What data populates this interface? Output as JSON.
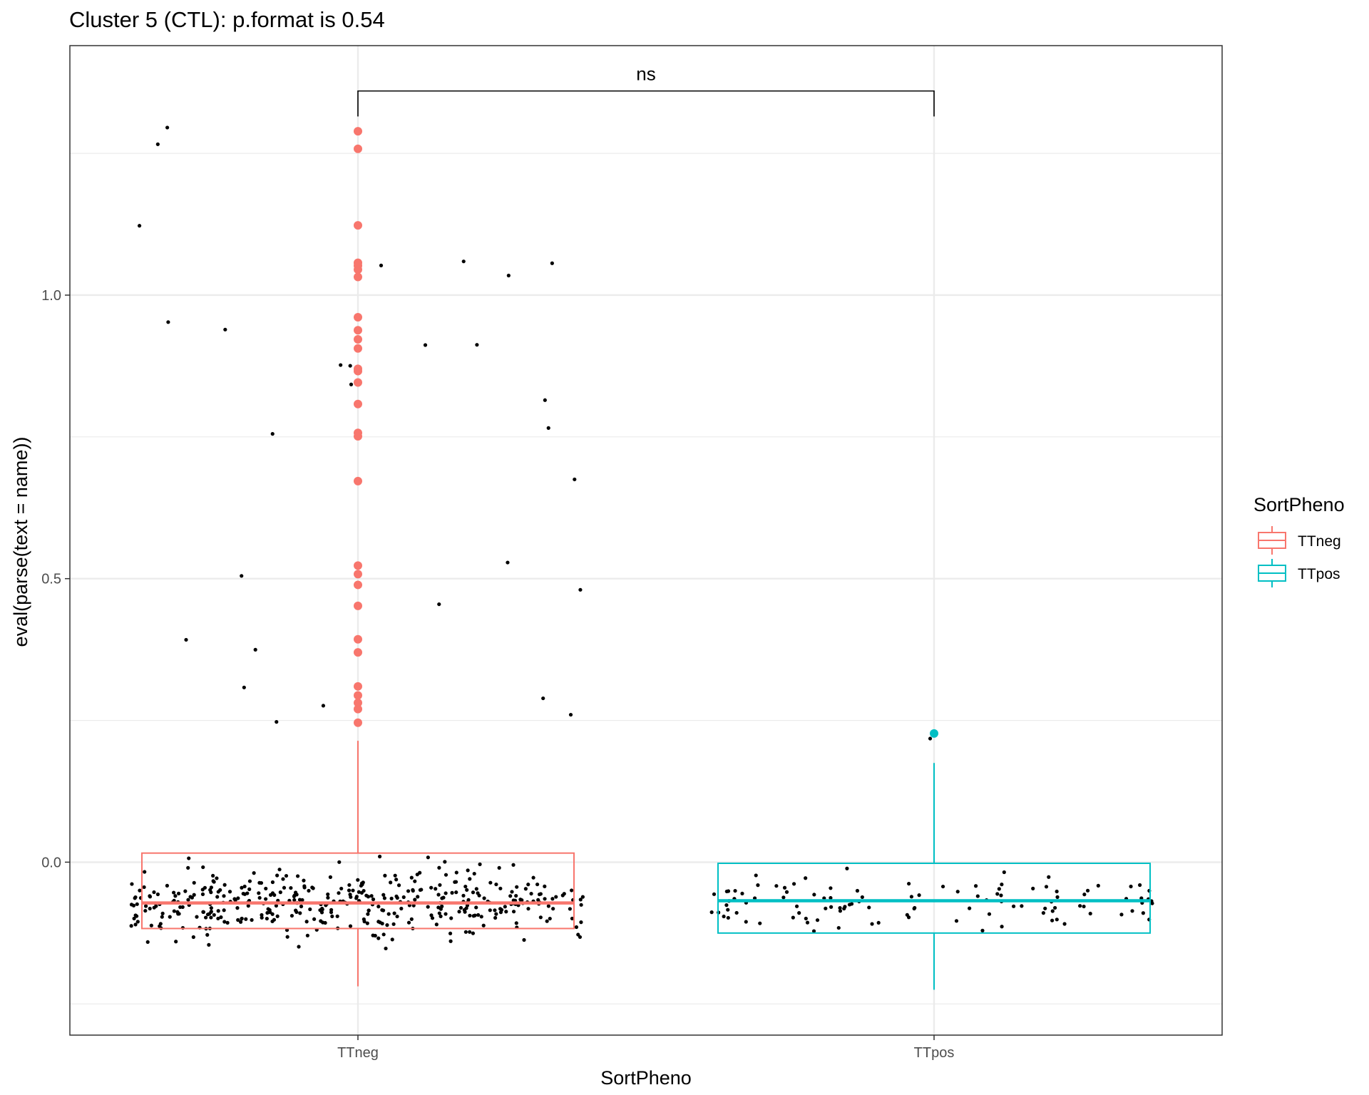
{
  "chart_data": {
    "type": "boxplot",
    "title": "Cluster 5 (CTL): p.format is 0.54",
    "xlabel": "SortPheno",
    "ylabel": "eval(parse(text = name))",
    "categories": [
      "TTneg",
      "TTpos"
    ],
    "ylim": [
      -0.305,
      1.44
    ],
    "yticks": [
      0.0,
      0.5,
      1.0
    ],
    "ytick_labels": [
      "0.0",
      "0.5",
      "1.0"
    ],
    "grid": true,
    "legend": {
      "title": "SortPheno",
      "position": "right",
      "entries": [
        "TTneg",
        "TTpos"
      ]
    },
    "series": [
      {
        "name": "TTneg",
        "color": "#F8766D",
        "box": {
          "q1": -0.117,
          "median": -0.072,
          "q3": 0.016,
          "whisker_low": -0.219,
          "whisker_high": 0.214
        },
        "outliers": [
          1.289,
          1.258,
          1.123,
          1.057,
          1.052,
          1.045,
          1.032,
          0.961,
          0.938,
          0.922,
          0.906,
          0.87,
          0.866,
          0.846,
          0.808,
          0.757,
          0.751,
          0.672,
          0.523,
          0.508,
          0.489,
          0.452,
          0.393,
          0.37,
          0.31,
          0.294,
          0.281,
          0.27,
          0.246
        ]
      },
      {
        "name": "TTpos",
        "color": "#00BFC4",
        "box": {
          "q1": -0.125,
          "median": -0.068,
          "q3": -0.002,
          "whisker_low": -0.225,
          "whisker_high": 0.175
        },
        "outliers": [
          0.227
        ]
      }
    ],
    "annotation": {
      "label": "ns",
      "between": [
        "TTneg",
        "TTpos"
      ],
      "y": 1.36
    }
  }
}
